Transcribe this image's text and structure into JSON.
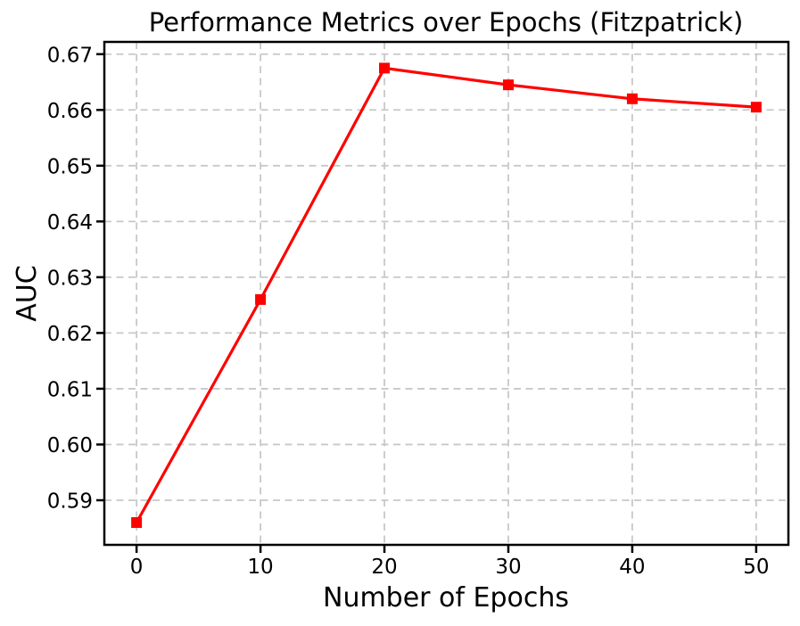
{
  "figure": {
    "background": "#ffffff",
    "text_color": "#000000",
    "spine_color": "#000000"
  },
  "chart_data": {
    "type": "line",
    "title": "Performance Metrics over Epochs (Fitzpatrick)",
    "xlabel": "Number of Epochs",
    "ylabel": "AUC",
    "x": [
      0,
      10,
      20,
      30,
      40,
      50
    ],
    "series": [
      {
        "name": "AUC",
        "values": [
          0.586,
          0.626,
          0.6675,
          0.6645,
          0.662,
          0.6605
        ],
        "color": "#ff0000",
        "marker": "square",
        "marker_size": 12,
        "line_width": 3.2
      }
    ],
    "x_ticks": [
      {
        "value": 0,
        "label": "0"
      },
      {
        "value": 10,
        "label": "10"
      },
      {
        "value": 20,
        "label": "20"
      },
      {
        "value": 30,
        "label": "30"
      },
      {
        "value": 40,
        "label": "40"
      },
      {
        "value": 50,
        "label": "50"
      }
    ],
    "y_ticks": [
      {
        "value": 0.59,
        "label": "0.59"
      },
      {
        "value": 0.6,
        "label": "0.60"
      },
      {
        "value": 0.61,
        "label": "0.61"
      },
      {
        "value": 0.62,
        "label": "0.62"
      },
      {
        "value": 0.63,
        "label": "0.63"
      },
      {
        "value": 0.64,
        "label": "0.64"
      },
      {
        "value": 0.65,
        "label": "0.65"
      },
      {
        "value": 0.66,
        "label": "0.66"
      },
      {
        "value": 0.67,
        "label": "0.67"
      }
    ],
    "xlim": [
      -2.6,
      52.6
    ],
    "ylim": [
      0.582,
      0.6722
    ],
    "grid": true,
    "grid_style": {
      "color": "#c8c8c8",
      "dash": "8 5.5",
      "width": 1.8
    },
    "legend": null
  }
}
